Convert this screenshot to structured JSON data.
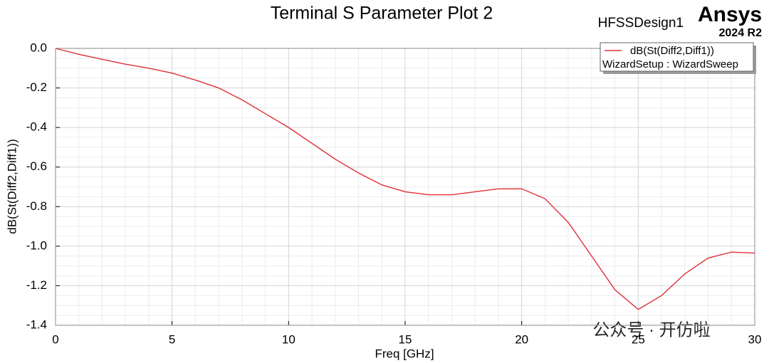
{
  "chart_data": {
    "type": "line",
    "title": "Terminal S Parameter Plot 2",
    "design": "HFSSDesign1",
    "brand": "Ansys",
    "version": "2024 R2",
    "xlabel": "Freq [GHz]",
    "ylabel": "dB(St(Diff2,Diff1))",
    "x": [
      0,
      1,
      2,
      3,
      4,
      5,
      6,
      7,
      8,
      9,
      10,
      11,
      12,
      13,
      14,
      15,
      16,
      17,
      18,
      19,
      20,
      21,
      22,
      23,
      24,
      25,
      26,
      27,
      28,
      29,
      30
    ],
    "series": [
      {
        "name": "dB(St(Diff2,Diff1))",
        "setup": "WizardSetup : WizardSweep",
        "color": "#e0303a",
        "values": [
          0,
          -0.03,
          -0.055,
          -0.08,
          -0.1,
          -0.125,
          -0.16,
          -0.2,
          -0.26,
          -0.33,
          -0.4,
          -0.48,
          -0.56,
          -0.63,
          -0.69,
          -0.725,
          -0.74,
          -0.74,
          -0.725,
          -0.71,
          -0.71,
          -0.76,
          -0.88,
          -1.05,
          -1.22,
          -1.32,
          -1.25,
          -1.14,
          -1.06,
          -1.03,
          -1.035
        ]
      }
    ],
    "xlim": [
      0,
      30
    ],
    "ylim": [
      -1.4,
      0
    ],
    "xticks": [
      0,
      5,
      10,
      15,
      20,
      25,
      30
    ],
    "yticks": [
      {
        "value": 0,
        "label": "0.0"
      },
      -0.2,
      -0.4,
      -0.6,
      -0.8,
      {
        "value": -1,
        "label": "-1.0"
      },
      -1.2,
      -1.4
    ],
    "grid": true,
    "legend": "upper right",
    "watermark": "公众号 · 开仿啦"
  }
}
